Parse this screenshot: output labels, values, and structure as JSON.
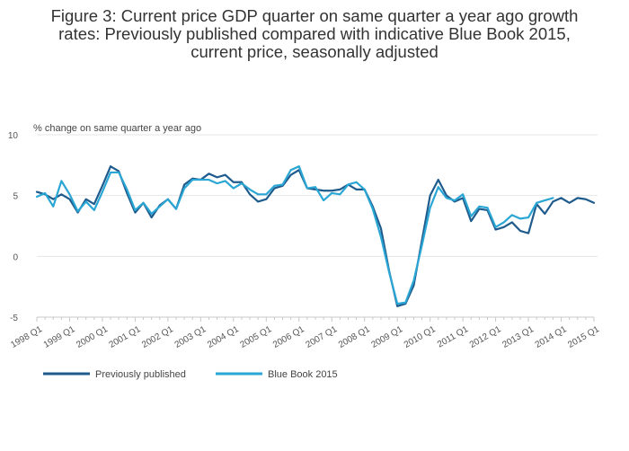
{
  "chart_data": {
    "type": "line",
    "title_lines": [
      "Figure 3: Current price GDP quarter on same quarter a year ago growth",
      "rates: Previously published compared with indicative Blue Book 2015,",
      "current price, seasonally adjusted"
    ],
    "ylabel": "% change on same quarter a year ago",
    "ylim": [
      -5,
      10
    ],
    "yticks": [
      -5,
      0,
      5,
      10
    ],
    "xtick_labels": [
      "1998 Q1",
      "1999 Q1",
      "2000 Q1",
      "2001 Q1",
      "2002 Q1",
      "2003 Q1",
      "2004 Q1",
      "2005 Q1",
      "2006 Q1",
      "2007 Q1",
      "2008 Q1",
      "2009 Q1",
      "2010 Q1",
      "2011 Q1",
      "2012 Q1",
      "2013 Q1",
      "2014 Q1",
      "2015 Q1"
    ],
    "n_quarters": 69,
    "gridlines": true,
    "legend_position": "bottom-left",
    "series": [
      {
        "name": "Previously published",
        "color": "#1f5b8c",
        "values": [
          5.3,
          5.1,
          4.7,
          5.1,
          4.7,
          3.6,
          4.7,
          4.3,
          5.8,
          7.4,
          7.0,
          5.2,
          3.6,
          4.4,
          3.2,
          4.2,
          4.7,
          3.9,
          5.9,
          6.4,
          6.3,
          6.8,
          6.5,
          6.7,
          6.1,
          6.1,
          5.1,
          4.5,
          4.7,
          5.6,
          5.8,
          6.7,
          7.1,
          5.6,
          5.5,
          5.4,
          5.4,
          5.5,
          5.9,
          5.5,
          5.5,
          4.1,
          2.3,
          -1.2,
          -4.1,
          -3.9,
          -2.4,
          1.3,
          5.0,
          6.3,
          5.0,
          4.5,
          4.8,
          2.9,
          3.9,
          3.8,
          2.2,
          2.4,
          2.8,
          2.1,
          1.9,
          4.3,
          3.5,
          4.5,
          4.8,
          4.4,
          4.8,
          4.7,
          4.4
        ]
      },
      {
        "name": "Blue Book 2015",
        "color": "#2aa6d5",
        "values": [
          4.9,
          5.2,
          4.1,
          6.2,
          5.1,
          3.7,
          4.5,
          3.8,
          5.3,
          6.9,
          6.9,
          5.5,
          3.8,
          4.4,
          3.5,
          4.1,
          4.7,
          3.9,
          5.6,
          6.3,
          6.3,
          6.3,
          6.0,
          6.2,
          5.6,
          6.0,
          5.5,
          5.1,
          5.1,
          5.8,
          5.9,
          7.1,
          7.4,
          5.6,
          5.7,
          4.6,
          5.2,
          5.1,
          5.9,
          6.1,
          5.5,
          3.9,
          1.6,
          -1.3,
          -3.9,
          -3.8,
          -2.0,
          0.9,
          4.0,
          5.7,
          4.8,
          4.6,
          5.1,
          3.3,
          4.1,
          4.0,
          2.4,
          2.8,
          3.4,
          3.1,
          3.2,
          4.4,
          4.6,
          4.8
        ]
      }
    ]
  }
}
